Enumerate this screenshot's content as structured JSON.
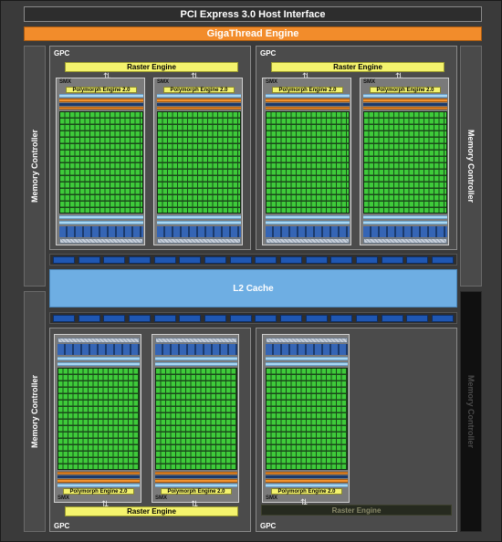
{
  "header": {
    "host_interface": "PCI Express 3.0 Host Interface",
    "giga_thread": "GigaThread Engine"
  },
  "memory_controller_label": "Memory Controller",
  "l2_cache": "L2 Cache",
  "gpc_label": "GPC",
  "raster_label": "Raster Engine",
  "smx_label": "SMX",
  "polymorph_label": "Polymorph Engine 2.0",
  "arrow_glyph": "⇅",
  "colors": {
    "giga_thread": "#f28c2b",
    "raster_engine": "#f4f36d",
    "cuda_core": "#3ecb3a",
    "l2_cache": "#6eaee3",
    "disabled_unit": "#101010"
  }
}
